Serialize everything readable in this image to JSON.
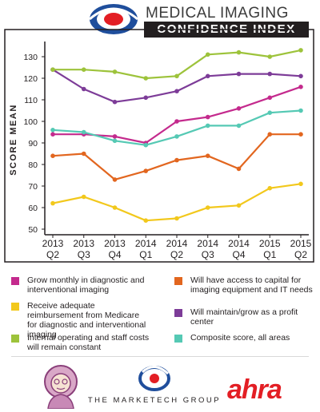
{
  "header": {
    "title_line1": "MEDICAL IMAGING",
    "title_line2": "CONFIDENCE INDEX"
  },
  "chart_data": {
    "type": "line",
    "ylabel": "SCORE MEAN",
    "xlabel": "",
    "ylim": [
      50,
      130
    ],
    "yticks": [
      50,
      60,
      70,
      80,
      90,
      100,
      110,
      120,
      130
    ],
    "grid": false,
    "categories": [
      [
        "2013",
        "Q2"
      ],
      [
        "2013",
        "Q3"
      ],
      [
        "2013",
        "Q4"
      ],
      [
        "2014",
        "Q1"
      ],
      [
        "2014",
        "Q2"
      ],
      [
        "2014",
        "Q3"
      ],
      [
        "2014",
        "Q4"
      ],
      [
        "2015",
        "Q1"
      ],
      [
        "2015",
        "Q2"
      ]
    ],
    "series": [
      {
        "name": "Grow monthly in diagnostic and interventional imaging",
        "color": "#c42a8d",
        "values": [
          94,
          94,
          93,
          90,
          100,
          102,
          106,
          111,
          116
        ]
      },
      {
        "name": "Will have access to capital for imaging equipment and IT needs",
        "color": "#e2661f",
        "values": [
          84,
          85,
          73,
          77,
          82,
          84,
          78,
          94,
          94
        ]
      },
      {
        "name": "Receive adequate reimbursement from Medicare for diagnostic and interventional imaging",
        "color": "#f2c81c",
        "values": [
          62,
          65,
          60,
          54,
          55,
          60,
          61,
          69,
          71
        ]
      },
      {
        "name": "Will maintain/grow as a profit center",
        "color": "#7d3c98",
        "values": [
          124,
          115,
          109,
          111,
          114,
          121,
          122,
          122,
          121
        ]
      },
      {
        "name": "Internal operating and staff costs will remain constant",
        "color": "#9dc33b",
        "values": [
          124,
          124,
          123,
          120,
          121,
          131,
          132,
          130,
          133
        ]
      },
      {
        "name": "Composite score, all areas",
        "color": "#55c9b4",
        "values": [
          96,
          95,
          91,
          89,
          93,
          98,
          98,
          104,
          105
        ]
      }
    ]
  },
  "legend": [
    {
      "label": "Grow monthly in diagnostic and interventional imaging",
      "color": "#c42a8d"
    },
    {
      "label": "Will have access to capital for imaging equipment and IT needs",
      "color": "#e2661f"
    },
    {
      "label": "Receive adequate reimbursement from Medicare for diagnostic and interventional imaging",
      "color": "#f2c81c"
    },
    {
      "label": "Will maintain/grow as a profit center",
      "color": "#7d3c98"
    },
    {
      "label": "Internal operating and staff costs will remain constant",
      "color": "#9dc33b"
    },
    {
      "label": "Composite score, all areas",
      "color": "#55c9b4"
    }
  ],
  "footer": {
    "sponsor_middle": "THE MARKETECH GROUP",
    "sponsor_right": "ahra"
  }
}
